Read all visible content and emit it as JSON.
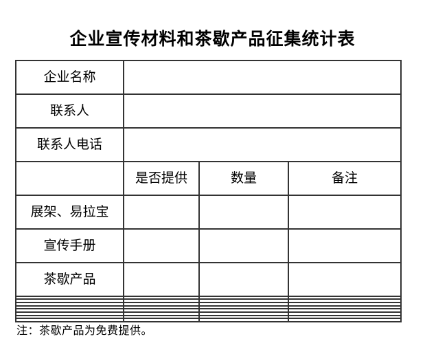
{
  "title": "企业宣传材料和茶歇产品征集统计表",
  "table": {
    "info_rows": [
      {
        "label": "企业名称",
        "value": ""
      },
      {
        "label": "联系人",
        "value": ""
      },
      {
        "label": "联系人电话",
        "value": ""
      }
    ],
    "header": {
      "item_col": "",
      "provide": "是否提供",
      "quantity": "数量",
      "remark": "备注"
    },
    "item_rows": [
      {
        "label": "展架、易拉宝",
        "provide": "",
        "quantity": "",
        "remark": ""
      },
      {
        "label": "宣传手册",
        "provide": "",
        "quantity": "",
        "remark": ""
      },
      {
        "label": "茶歇产品",
        "provide": "",
        "quantity": "",
        "remark": ""
      }
    ],
    "empty_row_count": 8
  },
  "note": "注：茶歇产品为免费提供。",
  "colors": {
    "background": "#ffffff",
    "text": "#000000",
    "border": "#333333"
  }
}
